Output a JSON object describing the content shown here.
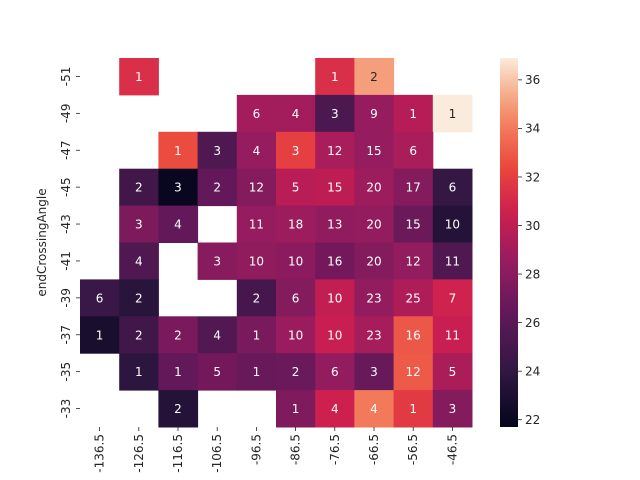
{
  "chart_data": {
    "type": "heatmap",
    "title": "",
    "xlabel": "",
    "ylabel": "endCrossingAngle",
    "x_categories": [
      "-136.5",
      "-126.5",
      "-116.5",
      "-106.5",
      "-96.5",
      "-86.5",
      "-76.5",
      "-66.5",
      "-56.5",
      "-46.5"
    ],
    "y_categories": [
      "-51",
      "-49",
      "-47",
      "-45",
      "-43",
      "-41",
      "-39",
      "-37",
      "-35",
      "-33"
    ],
    "color_values": [
      [
        null,
        31.3,
        null,
        null,
        null,
        null,
        31.3,
        35.0,
        null,
        null
      ],
      [
        null,
        null,
        null,
        null,
        29.0,
        29.0,
        25.3,
        28.5,
        29.7,
        37.0
      ],
      [
        null,
        null,
        32.5,
        25.5,
        28.5,
        32.0,
        29.2,
        28.5,
        29.2,
        null
      ],
      [
        null,
        24.8,
        22.0,
        26.4,
        27.8,
        29.8,
        30.0,
        28.8,
        27.8,
        24.2
      ],
      [
        null,
        27.5,
        26.4,
        null,
        28.5,
        28.8,
        28.3,
        28.4,
        26.8,
        23.4
      ],
      [
        null,
        25.5,
        null,
        27.9,
        28.3,
        28.1,
        27.1,
        27.8,
        28.4,
        25.5
      ],
      [
        24.4,
        23.6,
        null,
        null,
        25.0,
        27.8,
        30.2,
        28.4,
        29.4,
        30.7
      ],
      [
        22.8,
        24.8,
        27.4,
        25.6,
        27.3,
        28.7,
        30.4,
        29.1,
        32.9,
        30.4
      ],
      [
        null,
        23.8,
        26.4,
        27.1,
        26.6,
        26.7,
        28.4,
        26.6,
        33.0,
        29.3
      ],
      [
        null,
        null,
        23.4,
        null,
        null,
        27.6,
        30.6,
        34.0,
        31.8,
        27.8
      ]
    ],
    "annotations": [
      [
        null,
        "1",
        null,
        null,
        null,
        null,
        "1",
        "2",
        null,
        null
      ],
      [
        null,
        null,
        null,
        null,
        "6",
        "4",
        "3",
        "9",
        "1",
        "1"
      ],
      [
        null,
        null,
        "1",
        "3",
        "4",
        "3",
        "12",
        "15",
        "6",
        null
      ],
      [
        null,
        "2",
        "3",
        "2",
        "12",
        "5",
        "15",
        "20",
        "17",
        "6"
      ],
      [
        null,
        "3",
        "4",
        null,
        "11",
        "18",
        "13",
        "20",
        "15",
        "10"
      ],
      [
        null,
        "4",
        null,
        "3",
        "10",
        "10",
        "16",
        "20",
        "12",
        "11"
      ],
      [
        "6",
        "2",
        null,
        null,
        "2",
        "6",
        "10",
        "23",
        "25",
        "7"
      ],
      [
        "1",
        "2",
        "2",
        "4",
        "1",
        "10",
        "10",
        "23",
        "16",
        "11"
      ],
      [
        null,
        "1",
        "1",
        "5",
        "1",
        "2",
        "6",
        "3",
        "12",
        "5"
      ],
      [
        null,
        null,
        "2",
        null,
        null,
        "1",
        "4",
        "4",
        "1",
        "3"
      ]
    ],
    "colorbar": {
      "min": 21.7,
      "max": 36.9,
      "ticks": [
        "22",
        "24",
        "26",
        "28",
        "30",
        "32",
        "34",
        "36"
      ]
    },
    "colormap": "rocket",
    "grid": false,
    "legend": "colorbar-right"
  }
}
